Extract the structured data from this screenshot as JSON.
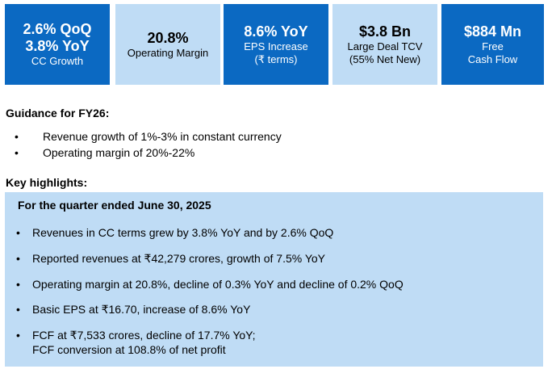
{
  "tiles": [
    {
      "lines": [
        "2.6% QoQ",
        "3.8% YoY"
      ],
      "sub": [
        "CC Growth"
      ],
      "style": "dark"
    },
    {
      "lines": [
        "20.8%"
      ],
      "sub": [
        "Operating Margin"
      ],
      "style": "light"
    },
    {
      "lines": [
        "8.6% YoY"
      ],
      "sub": [
        "EPS Increase",
        "(₹ terms)"
      ],
      "style": "dark"
    },
    {
      "lines": [
        "$3.8 Bn"
      ],
      "sub": [
        "Large Deal TCV",
        "(55% Net New)"
      ],
      "style": "light"
    },
    {
      "lines": [
        "$884 Mn"
      ],
      "sub": [
        "Free",
        "Cash Flow"
      ],
      "style": "dark"
    }
  ],
  "guidance": {
    "title": "Guidance for FY26:",
    "items": [
      "Revenue growth of 1%-3% in constant currency",
      "Operating margin of 20%-22%"
    ]
  },
  "highlights": {
    "title": "Key highlights:",
    "period": "For the quarter ended June 30, 2025",
    "items": [
      "Revenues in CC terms grew by 3.8% YoY and by 2.6% QoQ",
      "Reported revenues at ₹42,279 crores, growth of 7.5% YoY",
      "Operating margin at 20.8%, decline of 0.3% YoY and decline of 0.2% QoQ",
      "Basic EPS at ₹16.70, increase of 8.6% YoY",
      "FCF at ₹7,533 crores, decline of 17.7% YoY;",
      "FCF conversion at 108.8% of net profit"
    ]
  },
  "bullet_glyph": "•"
}
